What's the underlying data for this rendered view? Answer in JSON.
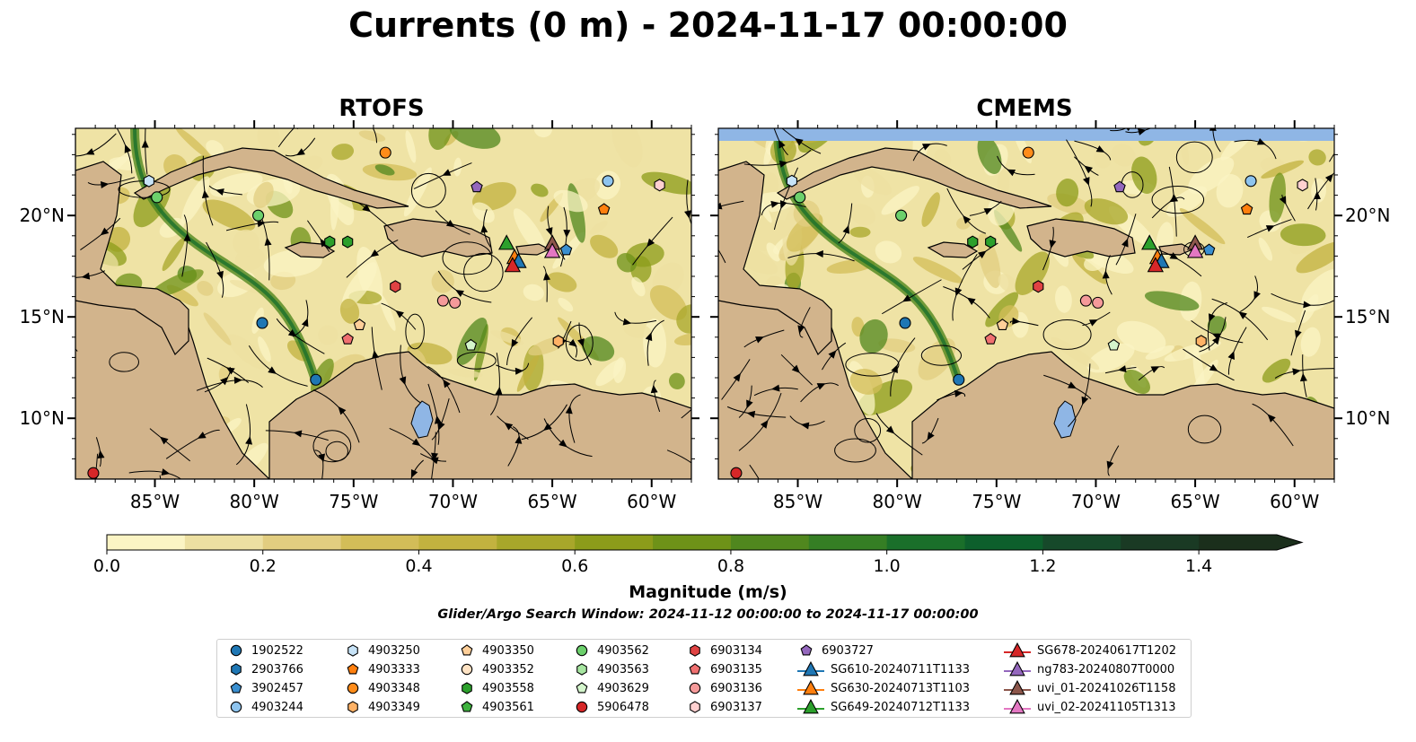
{
  "figure": {
    "title": "Currents (0 m) - 2024-11-17 00:00:00",
    "colors": {
      "land": "#d2b48c",
      "water_body": "#8fb6e5",
      "ocean_low": "#fbf4c4",
      "ocean_high": "#1a3318"
    }
  },
  "panels": [
    {
      "title": "RTOFS",
      "lat_ticks": [
        "20°N",
        "15°N",
        "10°N"
      ],
      "lon_ticks": [
        "85°W",
        "80°W",
        "75°W",
        "70°W",
        "65°W",
        "60°W"
      ]
    },
    {
      "title": "CMEMS",
      "lat_ticks": [
        "20°N",
        "15°N",
        "10°N"
      ],
      "lon_ticks": [
        "85°W",
        "80°W",
        "75°W",
        "70°W",
        "65°W",
        "60°W"
      ]
    }
  ],
  "colorbar": {
    "label": "Magnitude (m/s)",
    "ticks": [
      "0.0",
      "0.2",
      "0.4",
      "0.6",
      "0.8",
      "1.0",
      "1.2",
      "1.4"
    ],
    "min": 0.0,
    "max": 1.5,
    "step": 0.1,
    "extend": "max",
    "colors": [
      "#fbf4c4",
      "#ede0a2",
      "#e2cd80",
      "#d3bd58",
      "#c2b23f",
      "#a8a72a",
      "#8c9c1a",
      "#6e9218",
      "#50871e",
      "#357e24",
      "#1a6f2a",
      "#0d5f2c",
      "#16492a",
      "#1a3a24",
      "#1b2f1c"
    ]
  },
  "search_window": "Glider/Argo Search Window: 2024-11-12 00:00:00 to 2024-11-17 00:00:00",
  "legend": {
    "columns": [
      [
        {
          "label": "1902522",
          "marker": "circle",
          "color": "#1f77b4"
        },
        {
          "label": "2903766",
          "marker": "hexagon",
          "color": "#1f77b4"
        },
        {
          "label": "3902457",
          "marker": "pentagon",
          "color": "#3a8fd0"
        },
        {
          "label": "4903244",
          "marker": "circle",
          "color": "#8ec4ee"
        }
      ],
      [
        {
          "label": "4903250",
          "marker": "hexagon",
          "color": "#c7e3f7"
        },
        {
          "label": "4903333",
          "marker": "pentagon",
          "color": "#ff7f0e"
        },
        {
          "label": "4903348",
          "marker": "circle",
          "color": "#ff8c1a"
        },
        {
          "label": "4903349",
          "marker": "hexagon",
          "color": "#ffb266"
        }
      ],
      [
        {
          "label": "4903350",
          "marker": "pentagon",
          "color": "#ffcf99"
        },
        {
          "label": "4903352",
          "marker": "circle",
          "color": "#ffe3c4"
        },
        {
          "label": "4903558",
          "marker": "hexagon",
          "color": "#2ca02c"
        },
        {
          "label": "4903561",
          "marker": "pentagon",
          "color": "#3fb23f"
        }
      ],
      [
        {
          "label": "4903562",
          "marker": "circle",
          "color": "#6cd06c"
        },
        {
          "label": "4903563",
          "marker": "hexagon",
          "color": "#a6e5a0"
        },
        {
          "label": "4903629",
          "marker": "pentagon",
          "color": "#d4f5cc"
        },
        {
          "label": "5906478",
          "marker": "circle",
          "color": "#d62728"
        }
      ],
      [
        {
          "label": "6903134",
          "marker": "hexagon",
          "color": "#e04343"
        },
        {
          "label": "6903135",
          "marker": "pentagon",
          "color": "#f07070"
        },
        {
          "label": "6903136",
          "marker": "circle",
          "color": "#f59a9a"
        },
        {
          "label": "6903137",
          "marker": "hexagon",
          "color": "#ffd0d0"
        }
      ],
      [
        {
          "label": "6903727",
          "marker": "pentagon",
          "color": "#9467bd"
        },
        {
          "label": "SG610-20240711T1133",
          "marker": "triangle",
          "color": "#1f77b4"
        },
        {
          "label": "SG630-20240713T1103",
          "marker": "triangle",
          "color": "#ff7f0e"
        },
        {
          "label": "SG649-20240712T1133",
          "marker": "triangle",
          "color": "#2ca02c"
        }
      ],
      [
        {
          "label": "SG678-20240617T1202",
          "marker": "triangle",
          "color": "#d62728"
        },
        {
          "label": "ng783-20240807T0000",
          "marker": "triangle",
          "color": "#9467bd"
        },
        {
          "label": "uvi_01-20241026T1158",
          "marker": "triangle",
          "color": "#8c564b"
        },
        {
          "label": "uvi_02-20241105T1313",
          "marker": "triangle",
          "color": "#e377c2"
        }
      ]
    ]
  },
  "platforms": [
    {
      "label": "1902522",
      "positions": [
        [
          -79.6,
          14.7
        ],
        [
          -76.9,
          11.9
        ]
      ]
    },
    {
      "label": "4903250",
      "positions": [
        [
          -85.3,
          21.7
        ]
      ]
    },
    {
      "label": "4903562",
      "positions": [
        [
          -84.9,
          20.9
        ],
        [
          -79.8,
          20.0
        ]
      ]
    },
    {
      "label": "4903348",
      "positions": [
        [
          -73.4,
          23.1
        ]
      ]
    },
    {
      "label": "6903727",
      "positions": [
        [
          -68.8,
          21.4
        ]
      ]
    },
    {
      "label": "4903244",
      "positions": [
        [
          -62.2,
          21.7
        ]
      ]
    },
    {
      "label": "6903137",
      "positions": [
        [
          -59.6,
          21.5
        ]
      ]
    },
    {
      "label": "4903333",
      "positions": [
        [
          -62.4,
          20.3
        ]
      ]
    },
    {
      "label": "4903558",
      "positions": [
        [
          -76.2,
          18.7
        ],
        [
          -75.3,
          18.7
        ]
      ]
    },
    {
      "label": "3902457",
      "positions": [
        [
          -64.3,
          18.3
        ]
      ]
    },
    {
      "label": "6903134",
      "positions": [
        [
          -72.9,
          16.5
        ]
      ]
    },
    {
      "label": "6903136",
      "positions": [
        [
          -70.5,
          15.8
        ],
        [
          -69.9,
          15.7
        ]
      ]
    },
    {
      "label": "4903350",
      "positions": [
        [
          -74.7,
          14.6
        ]
      ]
    },
    {
      "label": "6903135",
      "positions": [
        [
          -75.3,
          13.9
        ]
      ]
    },
    {
      "label": "4903629",
      "positions": [
        [
          -69.1,
          13.6
        ]
      ]
    },
    {
      "label": "4903349",
      "positions": [
        [
          -64.7,
          13.8
        ]
      ]
    },
    {
      "label": "5906478",
      "positions": [
        [
          -88.1,
          7.3
        ]
      ]
    },
    {
      "label": "SG649-20240712T1133",
      "positions": [
        [
          -67.3,
          18.6
        ]
      ]
    },
    {
      "label": "SG630-20240713T1103",
      "positions": [
        [
          -66.9,
          17.9
        ]
      ]
    },
    {
      "label": "SG610-20240711T1133",
      "positions": [
        [
          -66.7,
          17.7
        ]
      ]
    },
    {
      "label": "SG678-20240617T1202",
      "positions": [
        [
          -67.0,
          17.5
        ]
      ]
    },
    {
      "label": "uvi_01-20241026T1158",
      "positions": [
        [
          -65.0,
          18.6
        ]
      ]
    },
    {
      "label": "uvi_02-20241105T1313",
      "positions": [
        [
          -65.0,
          18.2
        ]
      ]
    }
  ]
}
